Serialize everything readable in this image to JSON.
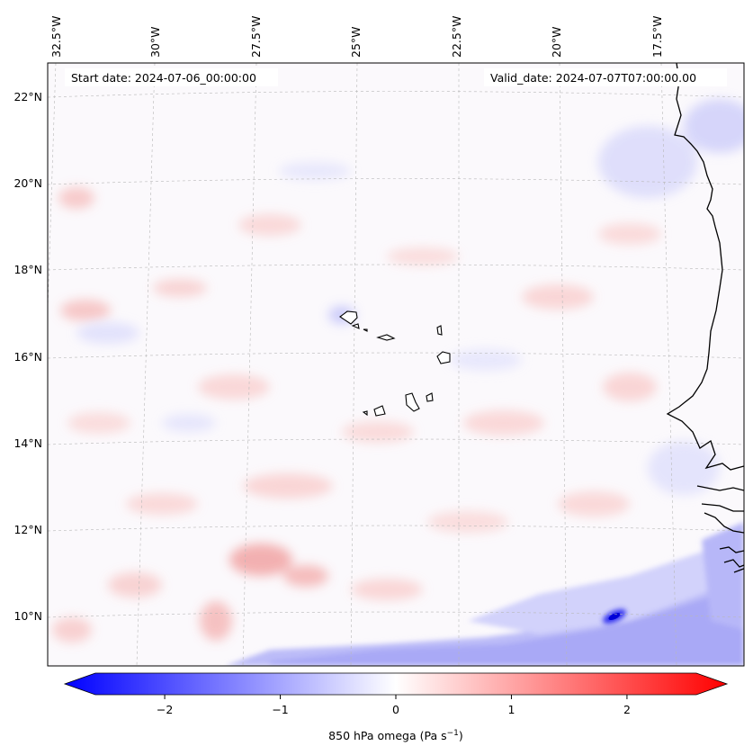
{
  "map": {
    "variable_title": "850 hPa omega",
    "units_base": "(Pa s",
    "units_exp": "−1",
    "units_tail": ")",
    "start_date": "Start date: 2024-07-06_00:00:00",
    "valid_date": "Valid_date: 2024-07-07T07:00:00.00",
    "lon_ticks": [
      "32.5°W",
      "30°W",
      "27.5°W",
      "25°W",
      "22.5°W",
      "20°W",
      "17.5°W"
    ],
    "lat_ticks": [
      "22°N",
      "20°N",
      "18°N",
      "16°N",
      "14°N",
      "12°N",
      "10°N"
    ],
    "colorbar": {
      "min": -2.6,
      "max": 2.6,
      "ticks": [
        -2,
        -1,
        0,
        1,
        2
      ],
      "tick_labels": [
        "−2",
        "−1",
        "0",
        "1",
        "2"
      ],
      "low_color": "#0000ff",
      "mid_color": "#ffffff",
      "high_color": "#ff0000"
    },
    "features": {
      "coastline": "West Africa coast (Mauritania, Senegal, Gambia, Guinea-Bissau)",
      "islands": "Cape Verde"
    }
  }
}
